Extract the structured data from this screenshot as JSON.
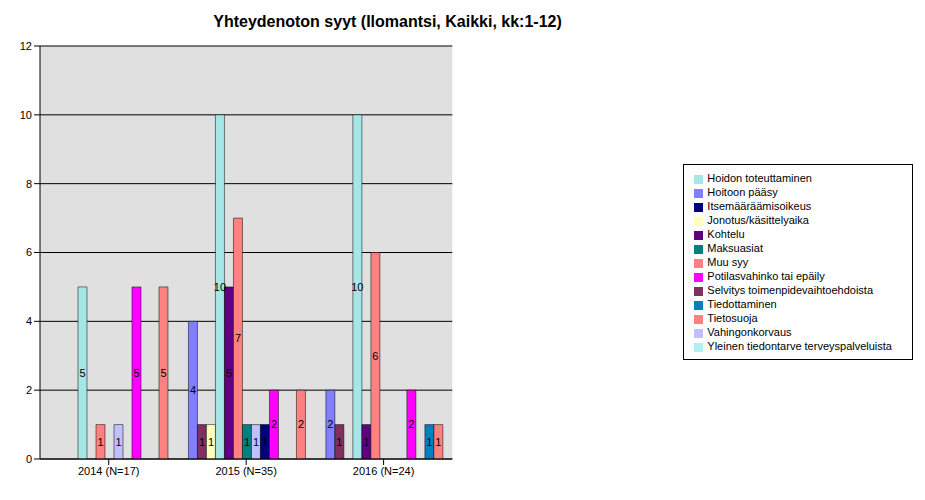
{
  "chart_data": {
    "type": "bar",
    "title": "Yhteydenoton syyt (Ilomantsi, Kaikki, kk:1-12)",
    "categories": [
      "2014 (N=17)",
      "2015 (N=35)",
      "2016 (N=24)"
    ],
    "series": [
      {
        "name": "Hoitoon pääsy",
        "color": "#8080ff",
        "values": [
          0,
          4,
          2
        ]
      },
      {
        "name": "Selvitys toimenpidevaihtoehdoista",
        "color": "#803060",
        "values": [
          0,
          1,
          1
        ]
      },
      {
        "name": "Jonotus/käsittelyaika",
        "color": "#ffffc0",
        "values": [
          0,
          1,
          0
        ]
      },
      {
        "name": "Hoidon toteuttaminen",
        "color": "#a6e6e6",
        "values": [
          5,
          10,
          10
        ]
      },
      {
        "name": "Kohtelu",
        "color": "#600080",
        "values": [
          0,
          5,
          1
        ]
      },
      {
        "name": "Tietosuoja",
        "color": "#ff8080",
        "values": [
          1,
          7,
          6
        ]
      },
      {
        "name": "Maksuasiat",
        "color": "#008080",
        "values": [
          0,
          1,
          0
        ]
      },
      {
        "name": "Vahingonkorvaus",
        "color": "#c0c0ff",
        "values": [
          1,
          1,
          0
        ]
      },
      {
        "name": "Itsemääräämisoikeus",
        "color": "#000080",
        "values": [
          0,
          1,
          0
        ]
      },
      {
        "name": "Potilasvahinko tai epäily",
        "color": "#ff00ff",
        "values": [
          5,
          2,
          2
        ]
      },
      {
        "name": "Yleinen tiedontarve terveyspalveluista",
        "color": "#b0f0f0",
        "values": [
          0,
          0,
          0
        ]
      },
      {
        "name": "Tiedottaminen",
        "color": "#0080c0",
        "values": [
          0,
          0,
          1
        ]
      },
      {
        "name": "Muu syy",
        "color": "#ff8080",
        "values": [
          5,
          2,
          1
        ]
      }
    ],
    "ylim": [
      0,
      12
    ],
    "yticks": [
      0,
      2,
      4,
      6,
      8,
      10,
      12
    ],
    "grid": true,
    "legend": "right",
    "data_labels": true
  }
}
